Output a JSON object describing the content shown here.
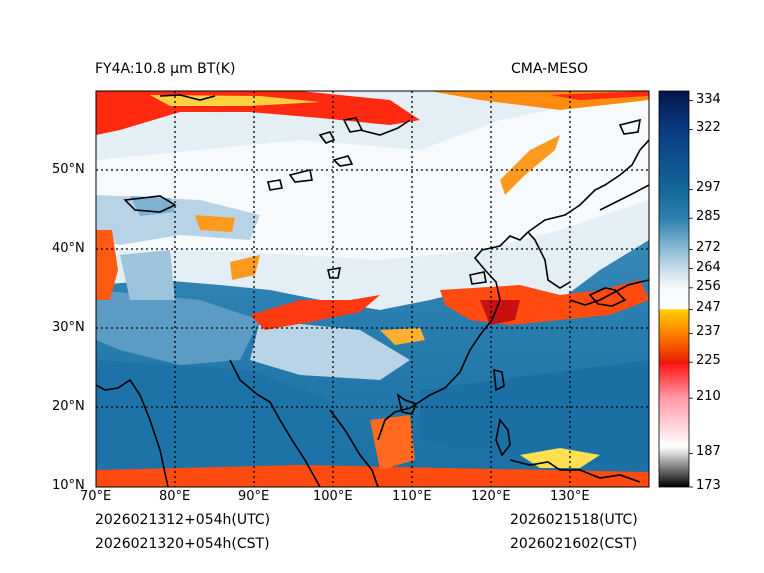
{
  "header": {
    "product": "FY4A:10.8 μm BT(K)",
    "model": "CMA-MESO"
  },
  "footer": {
    "init_utc": "2026021312+054h(UTC)",
    "init_cst": "2026021320+054h(CST)",
    "valid_utc": "2026021518(UTC)",
    "valid_cst": "2026021602(CST)"
  },
  "map": {
    "lon_range": [
      70,
      139.5
    ],
    "lat_range": [
      10,
      60
    ],
    "lon_ticks": [
      "70°E",
      "80°E",
      "90°E",
      "100°E",
      "110°E",
      "120°E",
      "130°E"
    ],
    "lat_ticks": [
      "10°N",
      "20°N",
      "30°N",
      "40°N",
      "50°N"
    ]
  },
  "colorbar": {
    "min": 173,
    "max": 338,
    "ticks": [
      "334",
      "322",
      "297",
      "285",
      "272",
      "264",
      "256",
      "247",
      "237",
      "225",
      "210",
      "187",
      "173"
    ],
    "tick_values": [
      334,
      322,
      297,
      285,
      272,
      264,
      256,
      247,
      237,
      225,
      210,
      187,
      173
    ],
    "stops": [
      {
        "v": 173,
        "color": "#000000"
      },
      {
        "v": 187,
        "color": "#d8d8d8"
      },
      {
        "v": 190,
        "color": "#ffffff"
      },
      {
        "v": 210,
        "color": "#ff9aa8"
      },
      {
        "v": 225,
        "color": "#ff1010"
      },
      {
        "v": 225.1,
        "color": "#e82000"
      },
      {
        "v": 237,
        "color": "#ff8000"
      },
      {
        "v": 247,
        "color": "#ffd000"
      },
      {
        "v": 247.1,
        "color": "#ffffff"
      },
      {
        "v": 256,
        "color": "#f6f9fc"
      },
      {
        "v": 264,
        "color": "#c6dcea"
      },
      {
        "v": 272,
        "color": "#8dbcd6"
      },
      {
        "v": 285,
        "color": "#2d7fae"
      },
      {
        "v": 297,
        "color": "#12689c"
      },
      {
        "v": 322,
        "color": "#0a3a82"
      },
      {
        "v": 338,
        "color": "#05154c"
      }
    ]
  }
}
